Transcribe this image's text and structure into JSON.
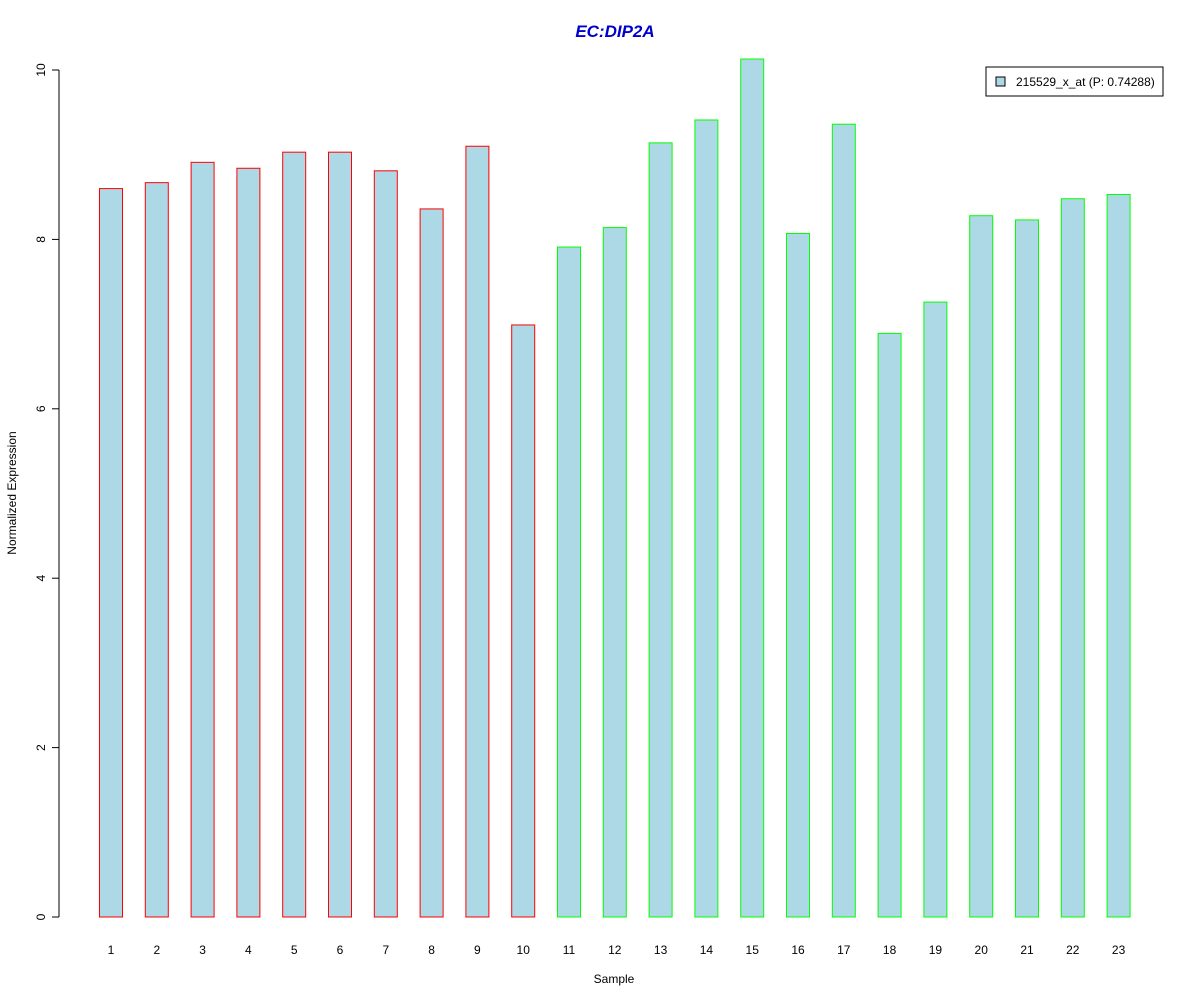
{
  "chart_data": {
    "type": "bar",
    "title": "EC:DIP2A",
    "xlabel": "Sample",
    "ylabel": "Normalized Expression",
    "ylim": [
      0,
      10.13
    ],
    "yticks": [
      "0",
      "2",
      "4",
      "6",
      "8",
      "10"
    ],
    "categories": [
      "1",
      "2",
      "3",
      "4",
      "5",
      "6",
      "7",
      "8",
      "9",
      "10",
      "11",
      "12",
      "13",
      "14",
      "15",
      "16",
      "17",
      "18",
      "19",
      "20",
      "21",
      "22",
      "23"
    ],
    "values": [
      8.6,
      8.67,
      8.91,
      8.84,
      9.03,
      9.03,
      8.81,
      8.36,
      9.1,
      6.99,
      7.91,
      8.14,
      9.14,
      9.41,
      10.13,
      8.07,
      9.36,
      6.89,
      7.26,
      8.28,
      8.23,
      8.48,
      8.53
    ],
    "groups": [
      "red",
      "red",
      "red",
      "red",
      "red",
      "red",
      "red",
      "red",
      "red",
      "red",
      "green",
      "green",
      "green",
      "green",
      "green",
      "green",
      "green",
      "green",
      "green",
      "green",
      "green",
      "green",
      "green"
    ],
    "colors": {
      "fill": "#add8e6",
      "red": "#ff0000",
      "green": "#00ff00",
      "title": "#0000cd"
    },
    "legend": {
      "label": "215529_x_at (P: 0.74288)",
      "position": "top-right"
    },
    "grid": false
  }
}
